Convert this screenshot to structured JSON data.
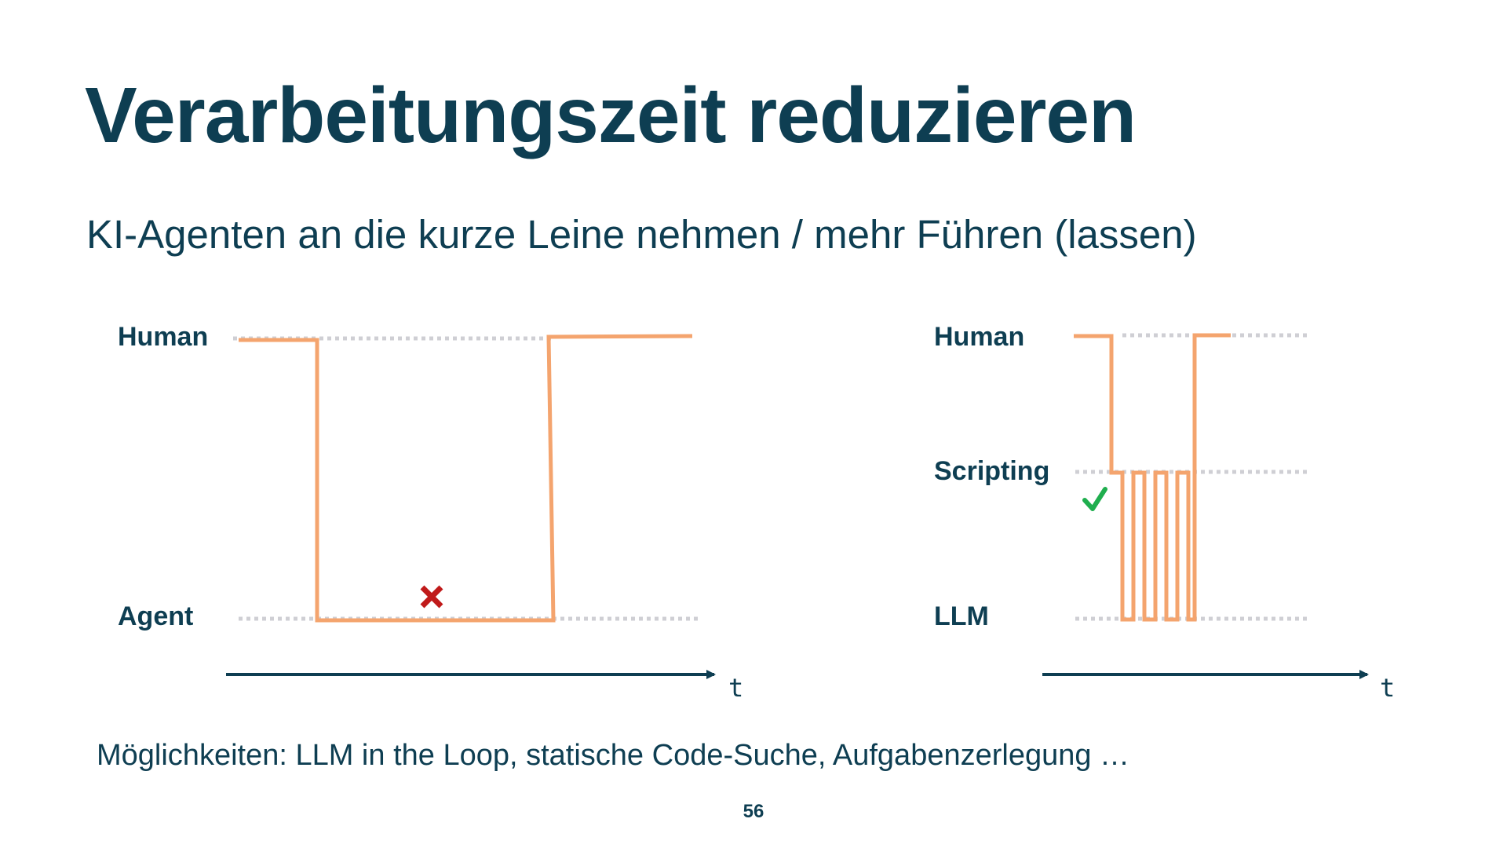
{
  "slide": {
    "title": "Verarbeitungszeit reduzieren",
    "subtitle": "KI-Agenten an die kurze Leine nehmen / mehr Führen (lassen)",
    "footer_note": "Möglichkeiten: LLM in the Loop, statische Code-Suche, Aufgabenzerlegung …",
    "page_number": "56"
  },
  "left_diagram": {
    "levels": [
      "Human",
      "Agent"
    ],
    "axis_label": "t",
    "marker_icon": "red-cross-icon"
  },
  "right_diagram": {
    "levels": [
      "Human",
      "Scripting",
      "LLM"
    ],
    "axis_label": "t",
    "marker_icon": "green-check-icon"
  },
  "colors": {
    "text": "#0e3e52",
    "signal": "#f4a46e",
    "guide": "#cfcfd4",
    "cross": "#c01a1a",
    "check": "#1fae4e"
  }
}
